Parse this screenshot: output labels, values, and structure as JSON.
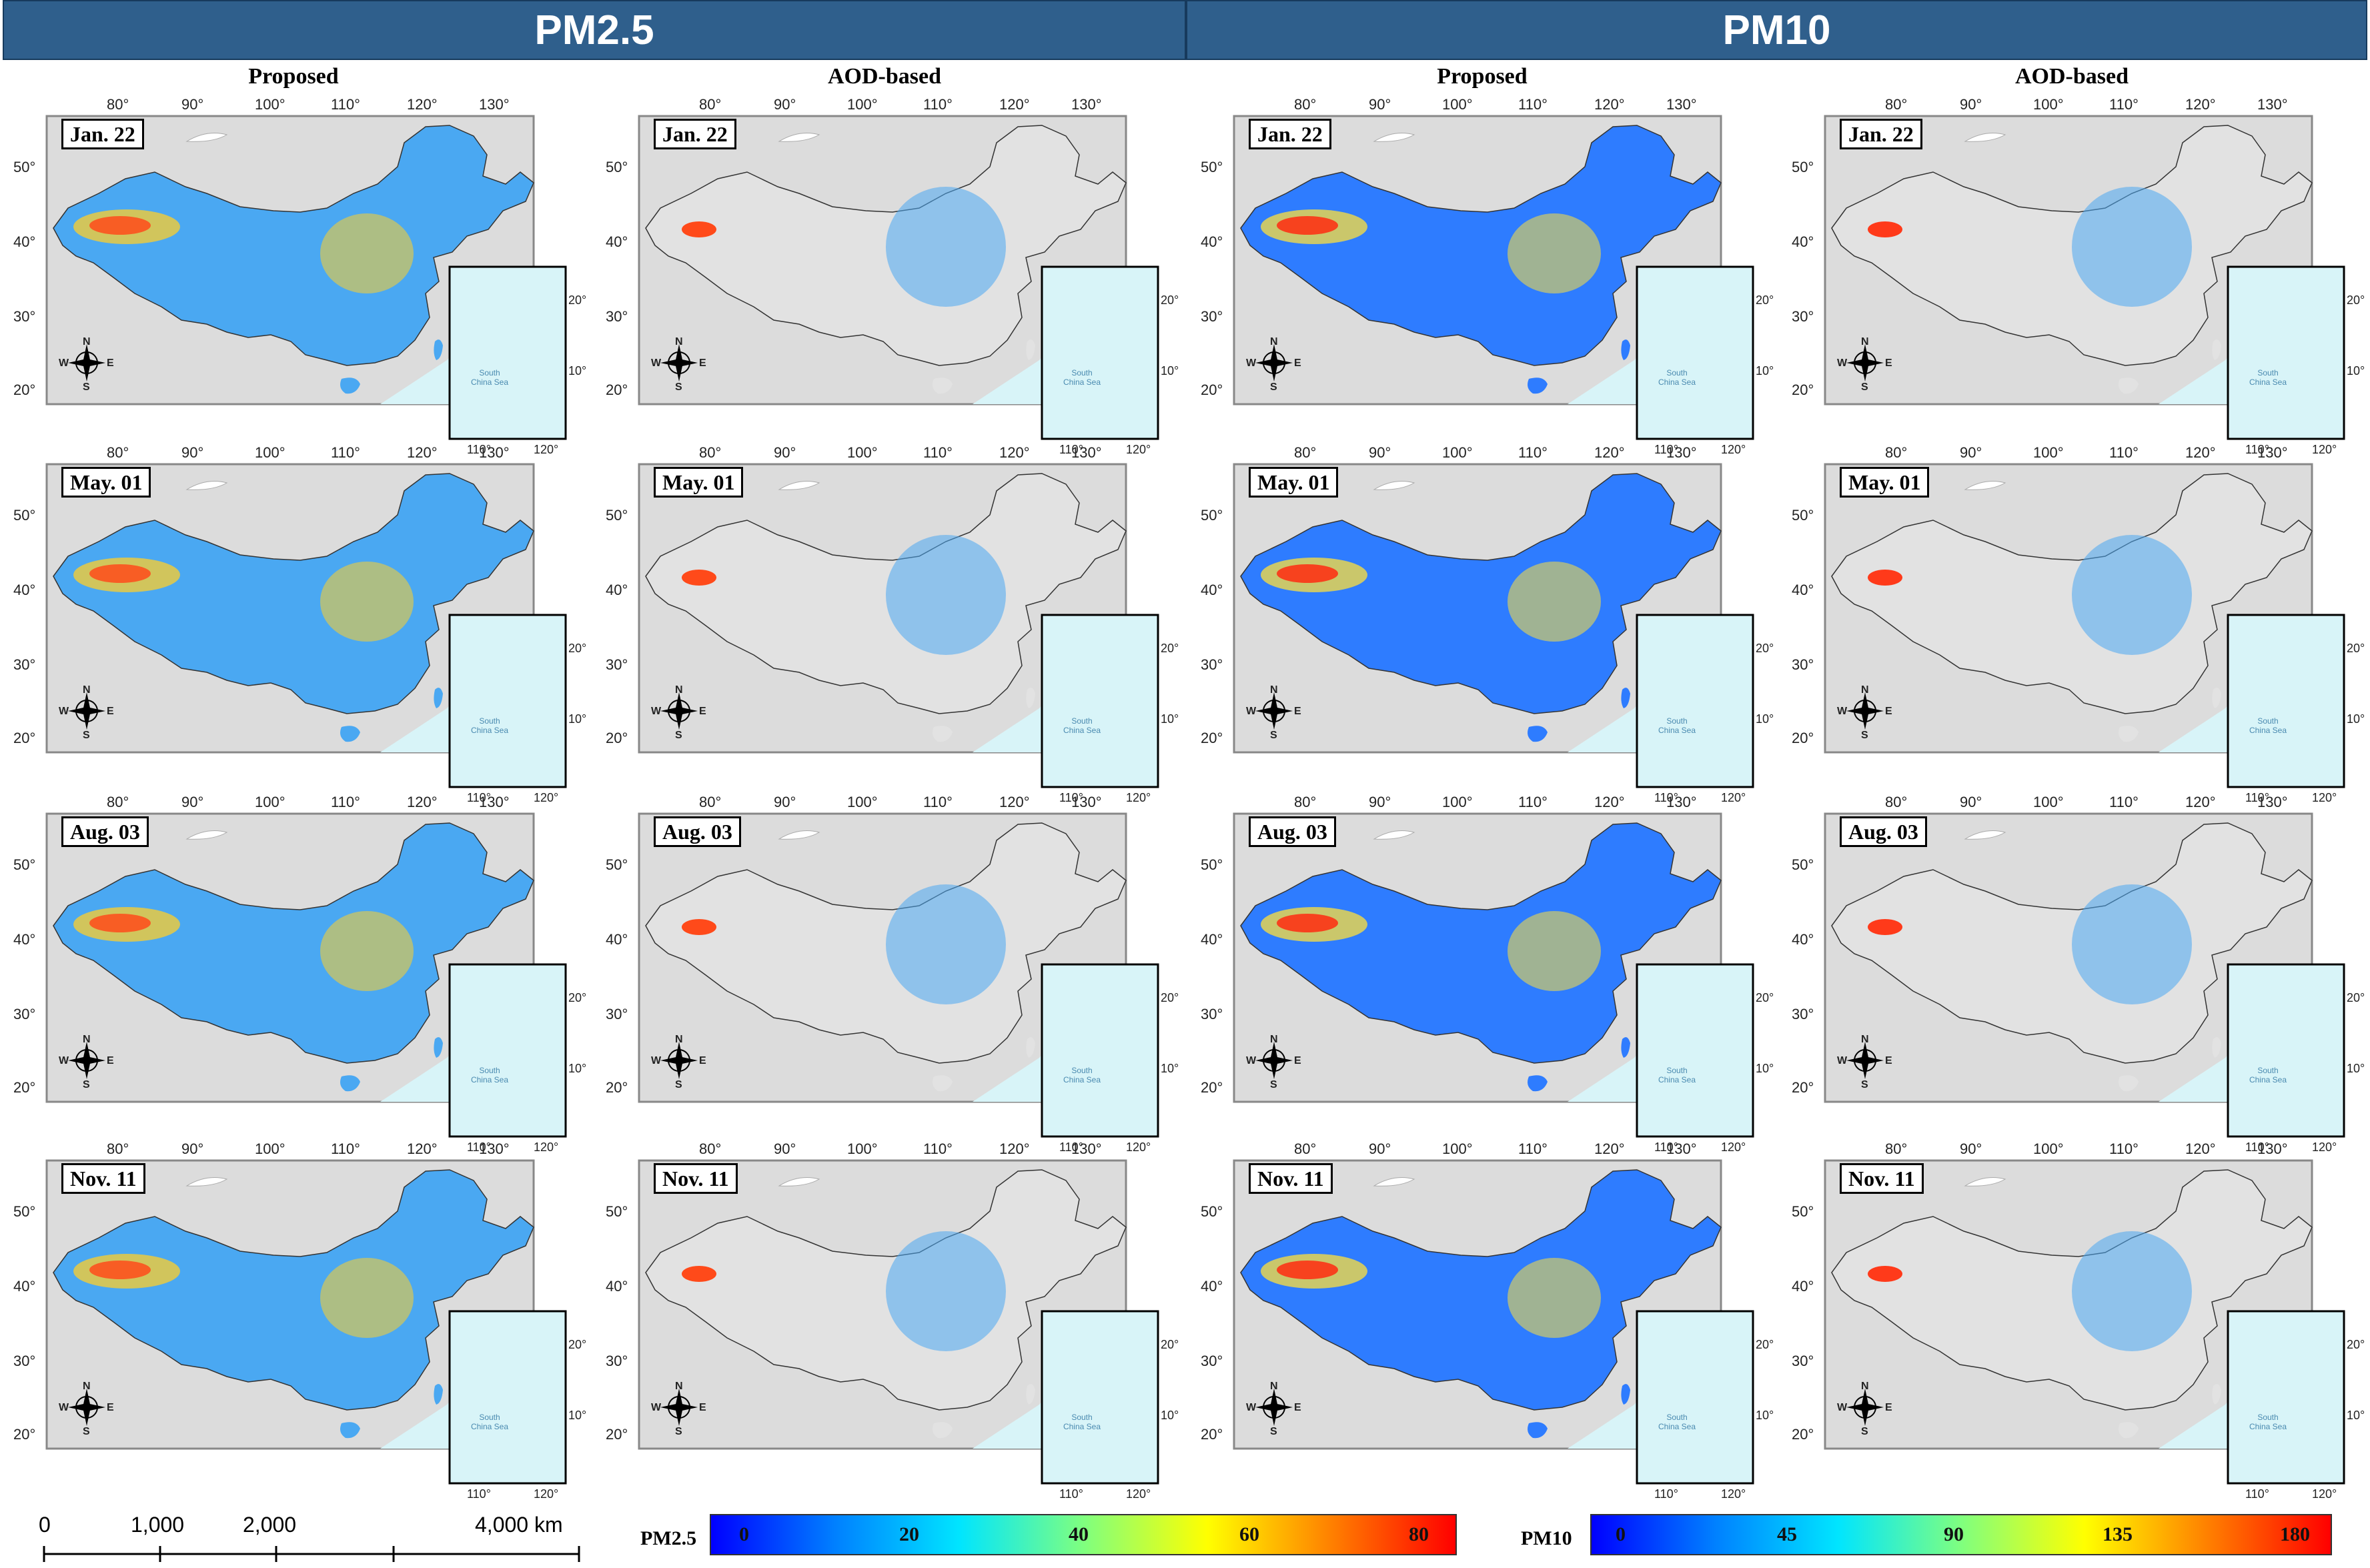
{
  "banners": {
    "left": "PM2.5",
    "right": "PM10"
  },
  "columns": [
    "Proposed",
    "AOD-based",
    "Proposed",
    "AOD-based"
  ],
  "rows": [
    "Jan. 22",
    "May. 01",
    "Aug. 03",
    "Nov. 11"
  ],
  "lon_ticks": [
    "80°",
    "90°",
    "100°",
    "110°",
    "120°",
    "130°"
  ],
  "lat_ticks": [
    "50°",
    "40°",
    "30°",
    "20°"
  ],
  "inset_lat_ticks": [
    "20°",
    "10°"
  ],
  "inset_lon_ticks": [
    "110°",
    "120°"
  ],
  "inset_label": "South China Sea",
  "compass": {
    "n": "N",
    "s": "S",
    "e": "E",
    "w": "W"
  },
  "scale_bar": {
    "labels": [
      "0",
      "1,000",
      "2,000",
      "4,000 km"
    ]
  },
  "colorbars": {
    "pm25": {
      "title": "PM2.5",
      "ticks": [
        "0",
        "20",
        "40",
        "60",
        "80"
      ]
    },
    "pm10": {
      "title": "PM10",
      "ticks": [
        "0",
        "45",
        "90",
        "135",
        "180"
      ]
    }
  },
  "colors": {
    "banner": "#2f5f8c",
    "background_land": "#dcdcdc",
    "sea": "#d8f4f8",
    "scale": [
      "#0000ff",
      "#0080ff",
      "#00e5ff",
      "#7fff7f",
      "#ffff00",
      "#ff8000",
      "#ff0000"
    ]
  }
}
